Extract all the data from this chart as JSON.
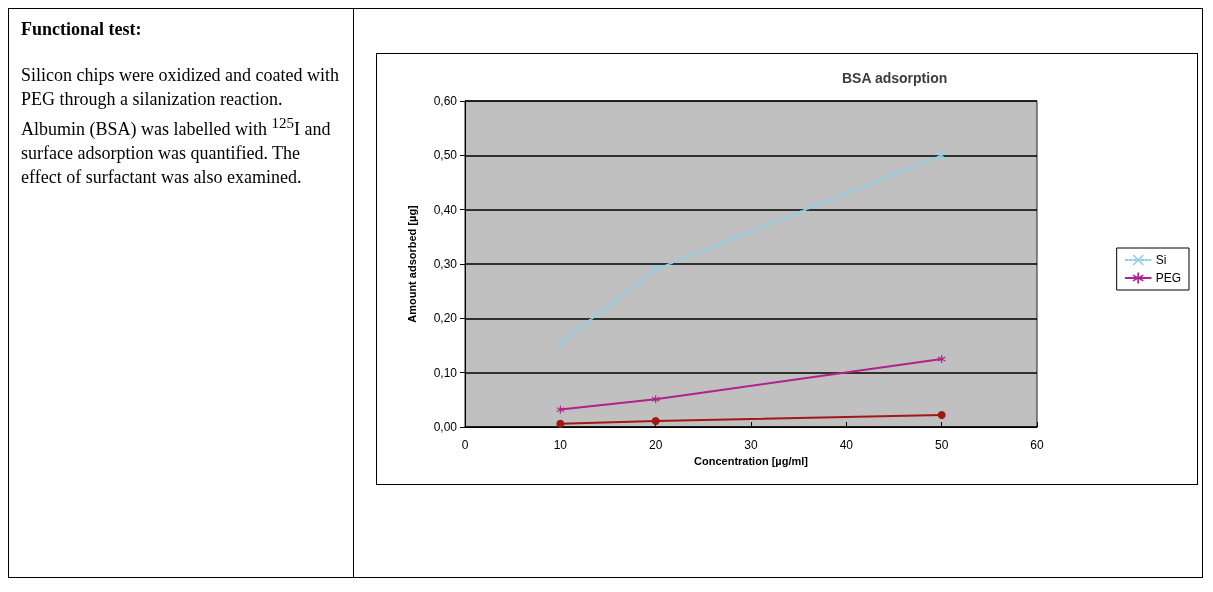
{
  "chart_data": {
    "type": "line",
    "title": "BSA adsorption",
    "xlabel": "Concentration [µg/ml]",
    "ylabel": "Amount adsorbed [µg]",
    "annotations": [
      "Functional test:",
      "Silicon chips were oxidized and coated with PEG through a silanization reaction. Albumin (BSA) was labelled with $^{125}$I and surface adsorption was quantified. The effect of surfactant was also examined."
    ],
    "x": [
      10,
      20,
      50
    ],
    "series": [
      {
        "name": "Si",
        "color": "#8ecfe6",
        "values": [
          0.155,
          0.29,
          0.5
        ],
        "marker": "cross",
        "line_style": "dotted"
      },
      {
        "name": "PEG",
        "color": "#b0228c",
        "values": [
          0.032,
          0.051,
          0.125
        ],
        "marker": "star",
        "line_style": "solid"
      },
      {
        "color": "#a01818",
        "values": [
          0.006,
          0.011,
          0.022
        ],
        "marker": "circle",
        "line_style": "solid"
      }
    ],
    "xlim": [
      0,
      60
    ],
    "xticks": [
      0,
      10,
      20,
      30,
      40,
      50,
      60
    ],
    "ylim": [
      0,
      0.6
    ],
    "yticks": [
      {
        "value": 0,
        "label": "0,00"
      },
      {
        "value": 0.1,
        "label": "0,10"
      },
      {
        "value": 0.2,
        "label": "0,20"
      },
      {
        "value": 0.3,
        "label": "0,30"
      },
      {
        "value": 0.4,
        "label": "0,40"
      },
      {
        "value": 0.5,
        "label": "0,50"
      },
      {
        "value": 0.6,
        "label": "0,60"
      }
    ],
    "grid": "y",
    "legend": "right"
  }
}
